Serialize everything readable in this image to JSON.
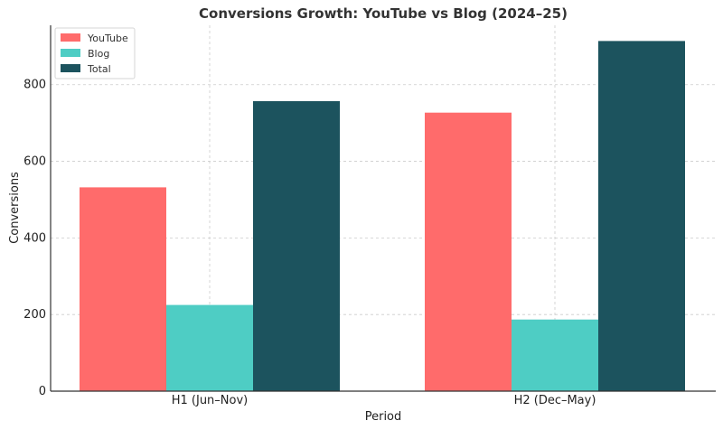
{
  "chart_data": {
    "type": "bar",
    "title": "Conversions Growth: YouTube vs Blog (2024–25)",
    "xlabel": "Period",
    "ylabel": "Conversions",
    "categories": [
      "H1 (Jun–Nov)",
      "H2 (Dec–May)"
    ],
    "series": [
      {
        "name": "YouTube",
        "values": [
          532,
          727
        ],
        "color": "#FF6B6B"
      },
      {
        "name": "Blog",
        "values": [
          225,
          187
        ],
        "color": "#4ECDC4"
      },
      {
        "name": "Total",
        "values": [
          757,
          914
        ],
        "color": "#1C535E"
      }
    ],
    "ylim": [
      0,
      955
    ],
    "yticks": [
      0,
      200,
      400,
      600,
      800
    ],
    "grid": true,
    "legend_position": "top-left"
  }
}
